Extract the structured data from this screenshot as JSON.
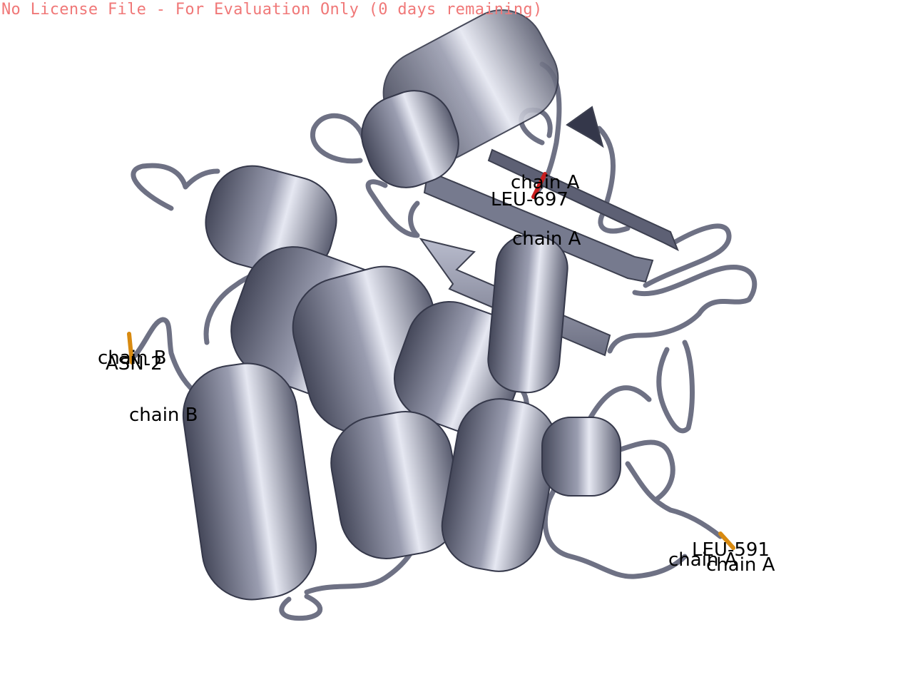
{
  "banner": {
    "license_notice": "No License File - For Evaluation Only (0 days remaining)"
  },
  "colors": {
    "ribbon": "#7c7f92",
    "ribbon_dark": "#4c4f60",
    "ribbon_light": "#b4b8ca",
    "selected_residue": "#c81e1e",
    "residue_stick": "#d88a10",
    "banner_text": "#f07878"
  },
  "labels": {
    "top_chain": "chain A",
    "top_residue": "LEU-697",
    "mid_chain": "chain A",
    "left_chain": "chain B",
    "left_residue": "ASN-2",
    "left_lower_chain": "chain B",
    "right_residue": "LEU-591",
    "right_chain_1": "chain A",
    "right_chain_2": "chain A"
  }
}
